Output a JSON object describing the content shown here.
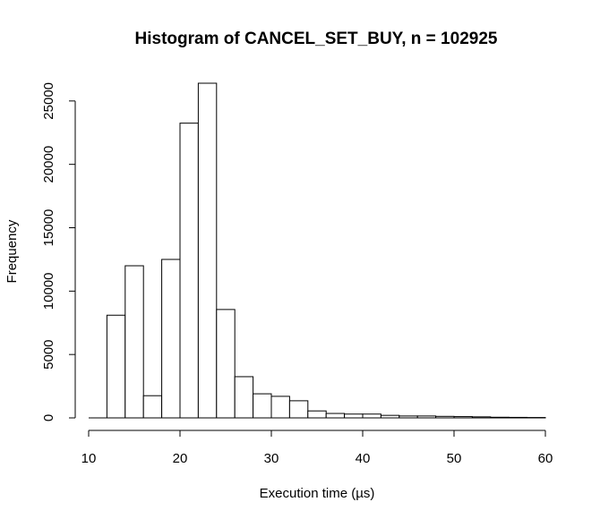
{
  "chart_data": {
    "type": "bar",
    "title": "Histogram of CANCEL_SET_BUY, n = 102925",
    "xlabel": "Execution time (µs)",
    "ylabel": "Frequency",
    "bin_width": 2,
    "bins": [
      {
        "start": 10,
        "end": 12,
        "count": 0
      },
      {
        "start": 12,
        "end": 14,
        "count": 8100
      },
      {
        "start": 14,
        "end": 16,
        "count": 12000
      },
      {
        "start": 16,
        "end": 18,
        "count": 1750
      },
      {
        "start": 18,
        "end": 20,
        "count": 12500
      },
      {
        "start": 20,
        "end": 22,
        "count": 23250
      },
      {
        "start": 22,
        "end": 24,
        "count": 26400
      },
      {
        "start": 24,
        "end": 26,
        "count": 8550
      },
      {
        "start": 26,
        "end": 28,
        "count": 3250
      },
      {
        "start": 28,
        "end": 30,
        "count": 1900
      },
      {
        "start": 30,
        "end": 32,
        "count": 1700
      },
      {
        "start": 32,
        "end": 34,
        "count": 1350
      },
      {
        "start": 34,
        "end": 36,
        "count": 550
      },
      {
        "start": 36,
        "end": 38,
        "count": 350
      },
      {
        "start": 38,
        "end": 40,
        "count": 300
      },
      {
        "start": 40,
        "end": 42,
        "count": 300
      },
      {
        "start": 42,
        "end": 44,
        "count": 200
      },
      {
        "start": 44,
        "end": 46,
        "count": 150
      },
      {
        "start": 46,
        "end": 48,
        "count": 150
      },
      {
        "start": 48,
        "end": 50,
        "count": 120
      },
      {
        "start": 50,
        "end": 52,
        "count": 100
      },
      {
        "start": 52,
        "end": 54,
        "count": 80
      },
      {
        "start": 54,
        "end": 56,
        "count": 50
      },
      {
        "start": 56,
        "end": 58,
        "count": 40
      },
      {
        "start": 58,
        "end": 60,
        "count": 30
      }
    ],
    "xlim": [
      10,
      60
    ],
    "ylim": [
      0,
      26400
    ],
    "x_ticks": [
      10,
      20,
      30,
      40,
      50,
      60
    ],
    "y_ticks": [
      0,
      5000,
      10000,
      15000,
      20000,
      25000
    ],
    "grid": false,
    "bar_fill": "#ffffff",
    "bar_stroke": "#000000"
  }
}
